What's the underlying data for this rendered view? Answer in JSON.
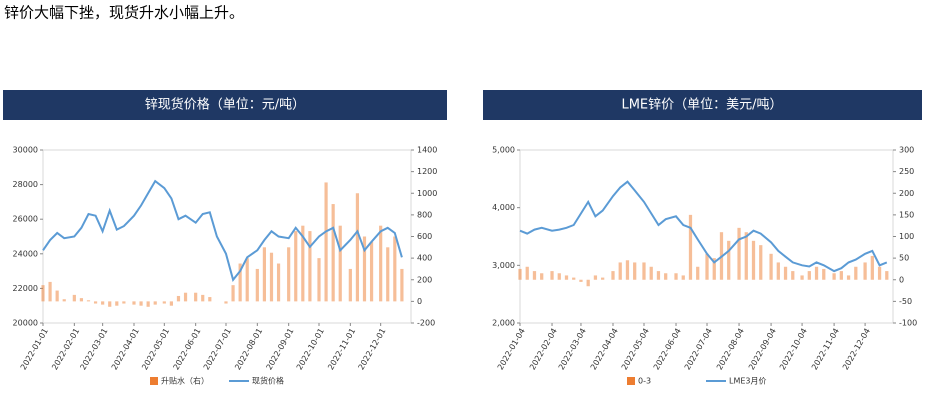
{
  "text": "锌价大幅下挫，现货升水小幅上升。",
  "chart_data": [
    {
      "type": "combo",
      "title": "锌现货价格（单位：元/吨）",
      "x": [
        "2022-01-01",
        "2022-01-08",
        "2022-01-15",
        "2022-01-22",
        "2022-02-01",
        "2022-02-08",
        "2022-02-15",
        "2022-02-22",
        "2022-03-01",
        "2022-03-08",
        "2022-03-15",
        "2022-03-22",
        "2022-04-01",
        "2022-04-08",
        "2022-04-15",
        "2022-04-22",
        "2022-05-01",
        "2022-05-08",
        "2022-05-15",
        "2022-05-22",
        "2022-06-01",
        "2022-06-08",
        "2022-06-15",
        "2022-06-22",
        "2022-07-01",
        "2022-07-08",
        "2022-07-15",
        "2022-07-22",
        "2022-08-01",
        "2022-08-08",
        "2022-08-15",
        "2022-08-22",
        "2022-09-01",
        "2022-09-08",
        "2022-09-15",
        "2022-09-22",
        "2022-10-01",
        "2022-10-08",
        "2022-10-15",
        "2022-10-22",
        "2022-11-01",
        "2022-11-08",
        "2022-11-15",
        "2022-11-22",
        "2022-12-01",
        "2022-12-08",
        "2022-12-15",
        "2022-12-22"
      ],
      "xlim": [
        "2022-01-01",
        "2022-12-31"
      ],
      "xticks": [
        "2022-01-01",
        "2022-02-01",
        "2022-03-01",
        "2022-04-01",
        "2022-05-01",
        "2022-06-01",
        "2022-07-01",
        "2022-08-01",
        "2022-09-01",
        "2022-10-01",
        "2022-11-01",
        "2022-12-01"
      ],
      "ylim": [
        20000,
        30000
      ],
      "yticks": [
        20000,
        22000,
        24000,
        26000,
        28000,
        30000
      ],
      "y2lim": [
        -200,
        1400
      ],
      "y2ticks": [
        -200,
        0,
        200,
        400,
        600,
        800,
        1000,
        1200,
        1400
      ],
      "series": [
        {
          "name": "升贴水（右）",
          "type": "bar",
          "axis": "y2",
          "color": "#ed7d31",
          "values": [
            150,
            180,
            100,
            20,
            60,
            30,
            10,
            -20,
            -30,
            -50,
            -40,
            -20,
            -30,
            -40,
            -50,
            -30,
            -20,
            -40,
            50,
            80,
            80,
            60,
            40,
            0,
            -20,
            150,
            350,
            400,
            300,
            500,
            450,
            350,
            500,
            650,
            700,
            650,
            400,
            1100,
            900,
            700,
            300,
            1000,
            600,
            550,
            700,
            500,
            600,
            300
          ]
        },
        {
          "name": "现货价格",
          "type": "line",
          "color": "#5b9bd5",
          "values": [
            24200,
            24800,
            25200,
            24900,
            25000,
            25500,
            26300,
            26200,
            25300,
            26500,
            25400,
            25600,
            26200,
            26800,
            27500,
            28200,
            27800,
            27200,
            26000,
            26200,
            25800,
            26300,
            26400,
            25000,
            24000,
            22500,
            23000,
            23800,
            24200,
            24800,
            25300,
            25000,
            24900,
            25500,
            25000,
            24400,
            25000,
            25300,
            25500,
            24200,
            24800,
            25300,
            24200,
            24700,
            25300,
            25500,
            25200,
            23800
          ]
        }
      ]
    },
    {
      "type": "combo",
      "title": "LME锌价（单位：美元/吨）",
      "x": [
        "2022-01-04",
        "2022-01-11",
        "2022-01-18",
        "2022-01-25",
        "2022-02-04",
        "2022-02-11",
        "2022-02-18",
        "2022-02-25",
        "2022-03-04",
        "2022-03-11",
        "2022-03-18",
        "2022-03-25",
        "2022-04-04",
        "2022-04-11",
        "2022-04-18",
        "2022-04-25",
        "2022-05-04",
        "2022-05-11",
        "2022-05-18",
        "2022-05-25",
        "2022-06-04",
        "2022-06-11",
        "2022-06-18",
        "2022-06-25",
        "2022-07-04",
        "2022-07-11",
        "2022-07-18",
        "2022-07-25",
        "2022-08-04",
        "2022-08-11",
        "2022-08-18",
        "2022-08-25",
        "2022-09-04",
        "2022-09-11",
        "2022-09-18",
        "2022-09-25",
        "2022-10-04",
        "2022-10-11",
        "2022-10-18",
        "2022-10-25",
        "2022-11-04",
        "2022-11-11",
        "2022-11-18",
        "2022-11-25",
        "2022-12-04",
        "2022-12-11",
        "2022-12-18",
        "2022-12-25"
      ],
      "xlim": [
        "2022-01-04",
        "2022-12-31"
      ],
      "xticks": [
        "2022-01-04",
        "2022-02-04",
        "2022-03-04",
        "2022-04-04",
        "2022-05-04",
        "2022-06-04",
        "2022-07-04",
        "2022-08-04",
        "2022-09-04",
        "2022-10-04",
        "2022-11-04",
        "2022-12-04"
      ],
      "ylim": [
        2000,
        5000
      ],
      "yticks": [
        {
          "value": 2000,
          "label": "2,000"
        },
        {
          "value": 3000,
          "label": "3,000"
        },
        {
          "value": 4000,
          "label": "4,000"
        },
        {
          "value": 5000,
          "label": "5,000"
        }
      ],
      "y2lim": [
        -100,
        300
      ],
      "y2ticks": [
        -100,
        -50,
        0,
        50,
        100,
        150,
        200,
        250,
        300
      ],
      "series": [
        {
          "name": "0-3",
          "type": "bar",
          "axis": "y2",
          "color": "#ed7d31",
          "values": [
            25,
            30,
            20,
            15,
            20,
            15,
            10,
            5,
            -5,
            -15,
            10,
            5,
            20,
            40,
            45,
            40,
            40,
            30,
            20,
            15,
            15,
            10,
            150,
            30,
            60,
            50,
            110,
            90,
            120,
            110,
            90,
            80,
            60,
            40,
            30,
            20,
            10,
            20,
            30,
            25,
            15,
            20,
            10,
            30,
            40,
            55,
            30,
            20
          ]
        },
        {
          "name": "LME3月价",
          "type": "line",
          "color": "#5b9bd5",
          "values": [
            3600,
            3550,
            3620,
            3650,
            3600,
            3620,
            3650,
            3700,
            3900,
            4100,
            3850,
            3950,
            4200,
            4350,
            4450,
            4300,
            4100,
            3900,
            3700,
            3800,
            3850,
            3700,
            3650,
            3450,
            3200,
            3050,
            3150,
            3250,
            3450,
            3500,
            3600,
            3550,
            3400,
            3250,
            3150,
            3050,
            3000,
            2980,
            3050,
            3000,
            2900,
            2950,
            3050,
            3100,
            3200,
            3250,
            3000,
            3050
          ]
        }
      ]
    }
  ]
}
